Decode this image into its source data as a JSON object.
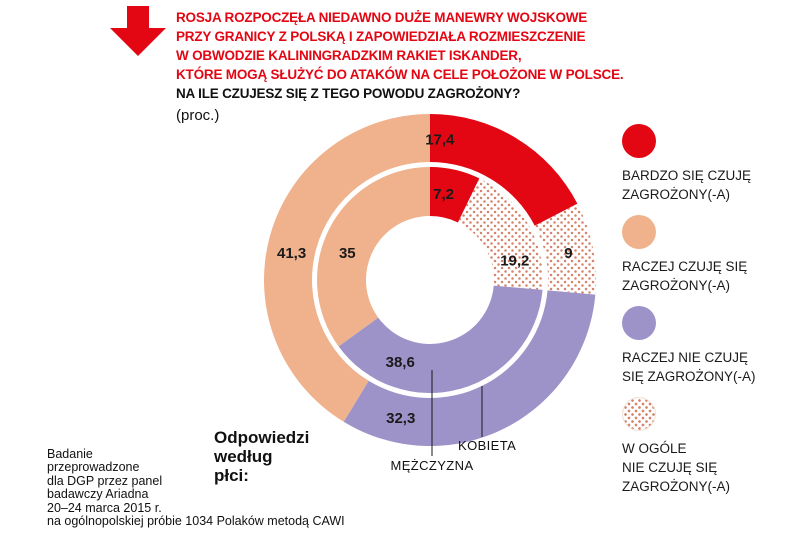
{
  "colors": {
    "accent_red": "#e30613",
    "peach": "#efb28c",
    "purple": "#9e93c8",
    "dot": "#d5836b",
    "text": "#1a1a1a",
    "background": "#ffffff"
  },
  "header": {
    "title_lines": [
      "ROSJA ROZPOCZĘŁA NIEDAWNO DUŻE MANEWRY WOJSKOWE",
      "PRZY GRANICY Z POLSKĄ I ZAPOWIEDZIAŁA ROZMIESZCZENIE",
      "W OBWODZIE KALININGRADZKIM RAKIET ISKANDER,",
      "KTÓRE MOGĄ SŁUŻYĆ DO ATAKÓW NA CELE POŁOŻONE W POLSCE."
    ],
    "question": "NA ILE CZUJESZ SIĘ Z TEGO POWODU ZAGROŻONY?",
    "unit": "(proc.)"
  },
  "chart_data": {
    "type": "donut",
    "title": "NA ILE CZUJESZ SIĘ Z TEGO POWODU ZAGROŻONY?",
    "unit": "proc.",
    "categories": [
      "BARDZO SIĘ CZUJĘ ZAGROŻONY(-A)",
      "RACZEJ CZUJĘ SIĘ ZAGROŻONY(-A)",
      "RACZEJ NIE CZUJĘ SIĘ ZAGROŻONY(-A)",
      "W OGÓLE NIE CZUJĘ SIĘ ZAGROŻONY(-A)"
    ],
    "colors": [
      "#e30613",
      "#efb28c",
      "#9e93c8",
      "dots"
    ],
    "dot_color": "#d5836b",
    "series": [
      {
        "name": "KOBIETA",
        "ring": "outer",
        "values": [
          17.4,
          41.3,
          32.3,
          9
        ],
        "value_labels": [
          "17,4",
          "41,3",
          "32,3",
          "9"
        ]
      },
      {
        "name": "MĘŻCZYZNA",
        "ring": "inner",
        "values": [
          7.2,
          35,
          38.6,
          19.2
        ],
        "value_labels": [
          "7,2",
          "35",
          "38,6",
          "19,2"
        ]
      }
    ],
    "legend_position": "right",
    "group_label": "Odpowiedzi według płci:"
  },
  "annotations": {
    "group_label_lines": [
      "Odpowiedzi",
      "według",
      "płci:"
    ],
    "inner_ring": "MĘŻCZYZNA",
    "outer_ring": "KOBIETA"
  },
  "legend": {
    "items": [
      {
        "color": "#e30613",
        "label": "BARDZO SIĘ CZUJĘ\nZAGROŻONY(-A)"
      },
      {
        "color": "#efb28c",
        "label": "RACZEJ CZUJĘ SIĘ\nZAGROŻONY(-A)"
      },
      {
        "color": "#9e93c8",
        "label": "RACZEJ NIE CZUJĘ\nSIĘ ZAGROŻONY(-A)"
      },
      {
        "color": "dots",
        "label": "W OGÓLE\nNIE CZUJĘ SIĘ\nZAGROŻONY(-A)"
      }
    ]
  },
  "footer": {
    "lines": [
      "Badanie",
      "przeprowadzone",
      "dla DGP przez panel",
      "badawczy Ariadna",
      "20–24 marca 2015 r.",
      "na ogólnopolskiej próbie 1034 Polaków metodą CAWI"
    ]
  }
}
